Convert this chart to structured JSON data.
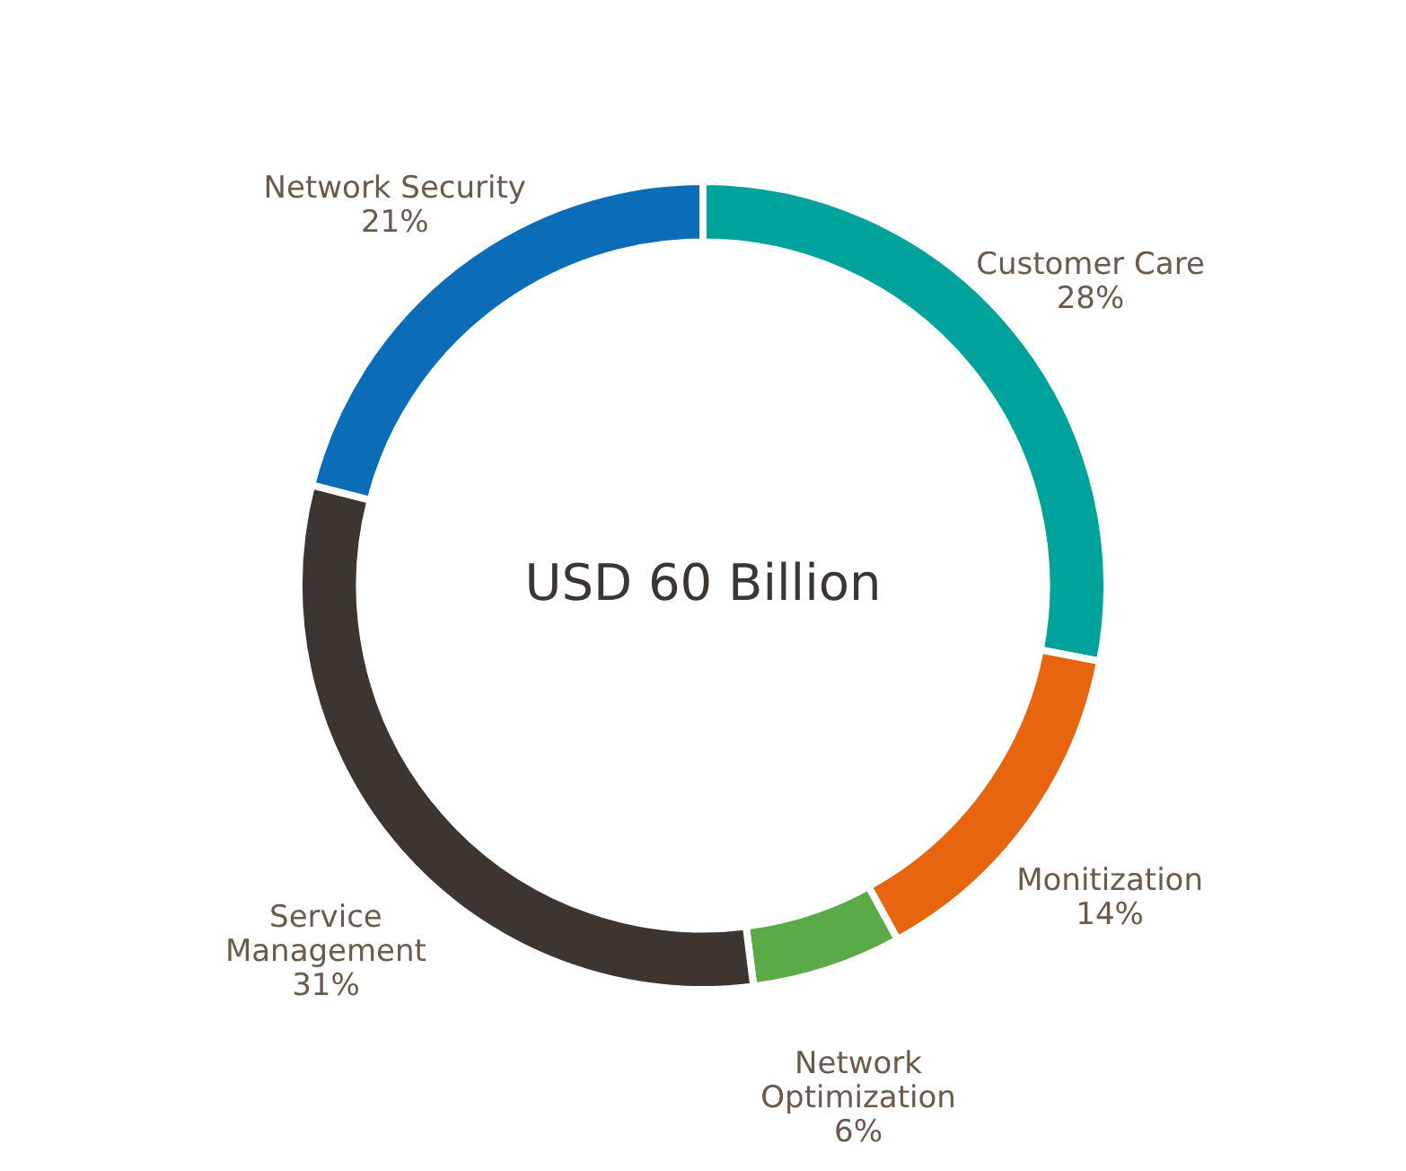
{
  "chart_data": {
    "type": "donut",
    "categories": [
      "Customer Care",
      "Monitization",
      "Network Optimization",
      "Service Management",
      "Network Security"
    ],
    "values": [
      28,
      14,
      6,
      31,
      21
    ],
    "value_labels": [
      "28%",
      "14%",
      "6%",
      "31%",
      "21%"
    ],
    "colors": [
      "#00a29c",
      "#e8650f",
      "#5aab47",
      "#3c3530",
      "#0b6cb7"
    ],
    "annotations": [
      "USD 60 Billion"
    ]
  }
}
